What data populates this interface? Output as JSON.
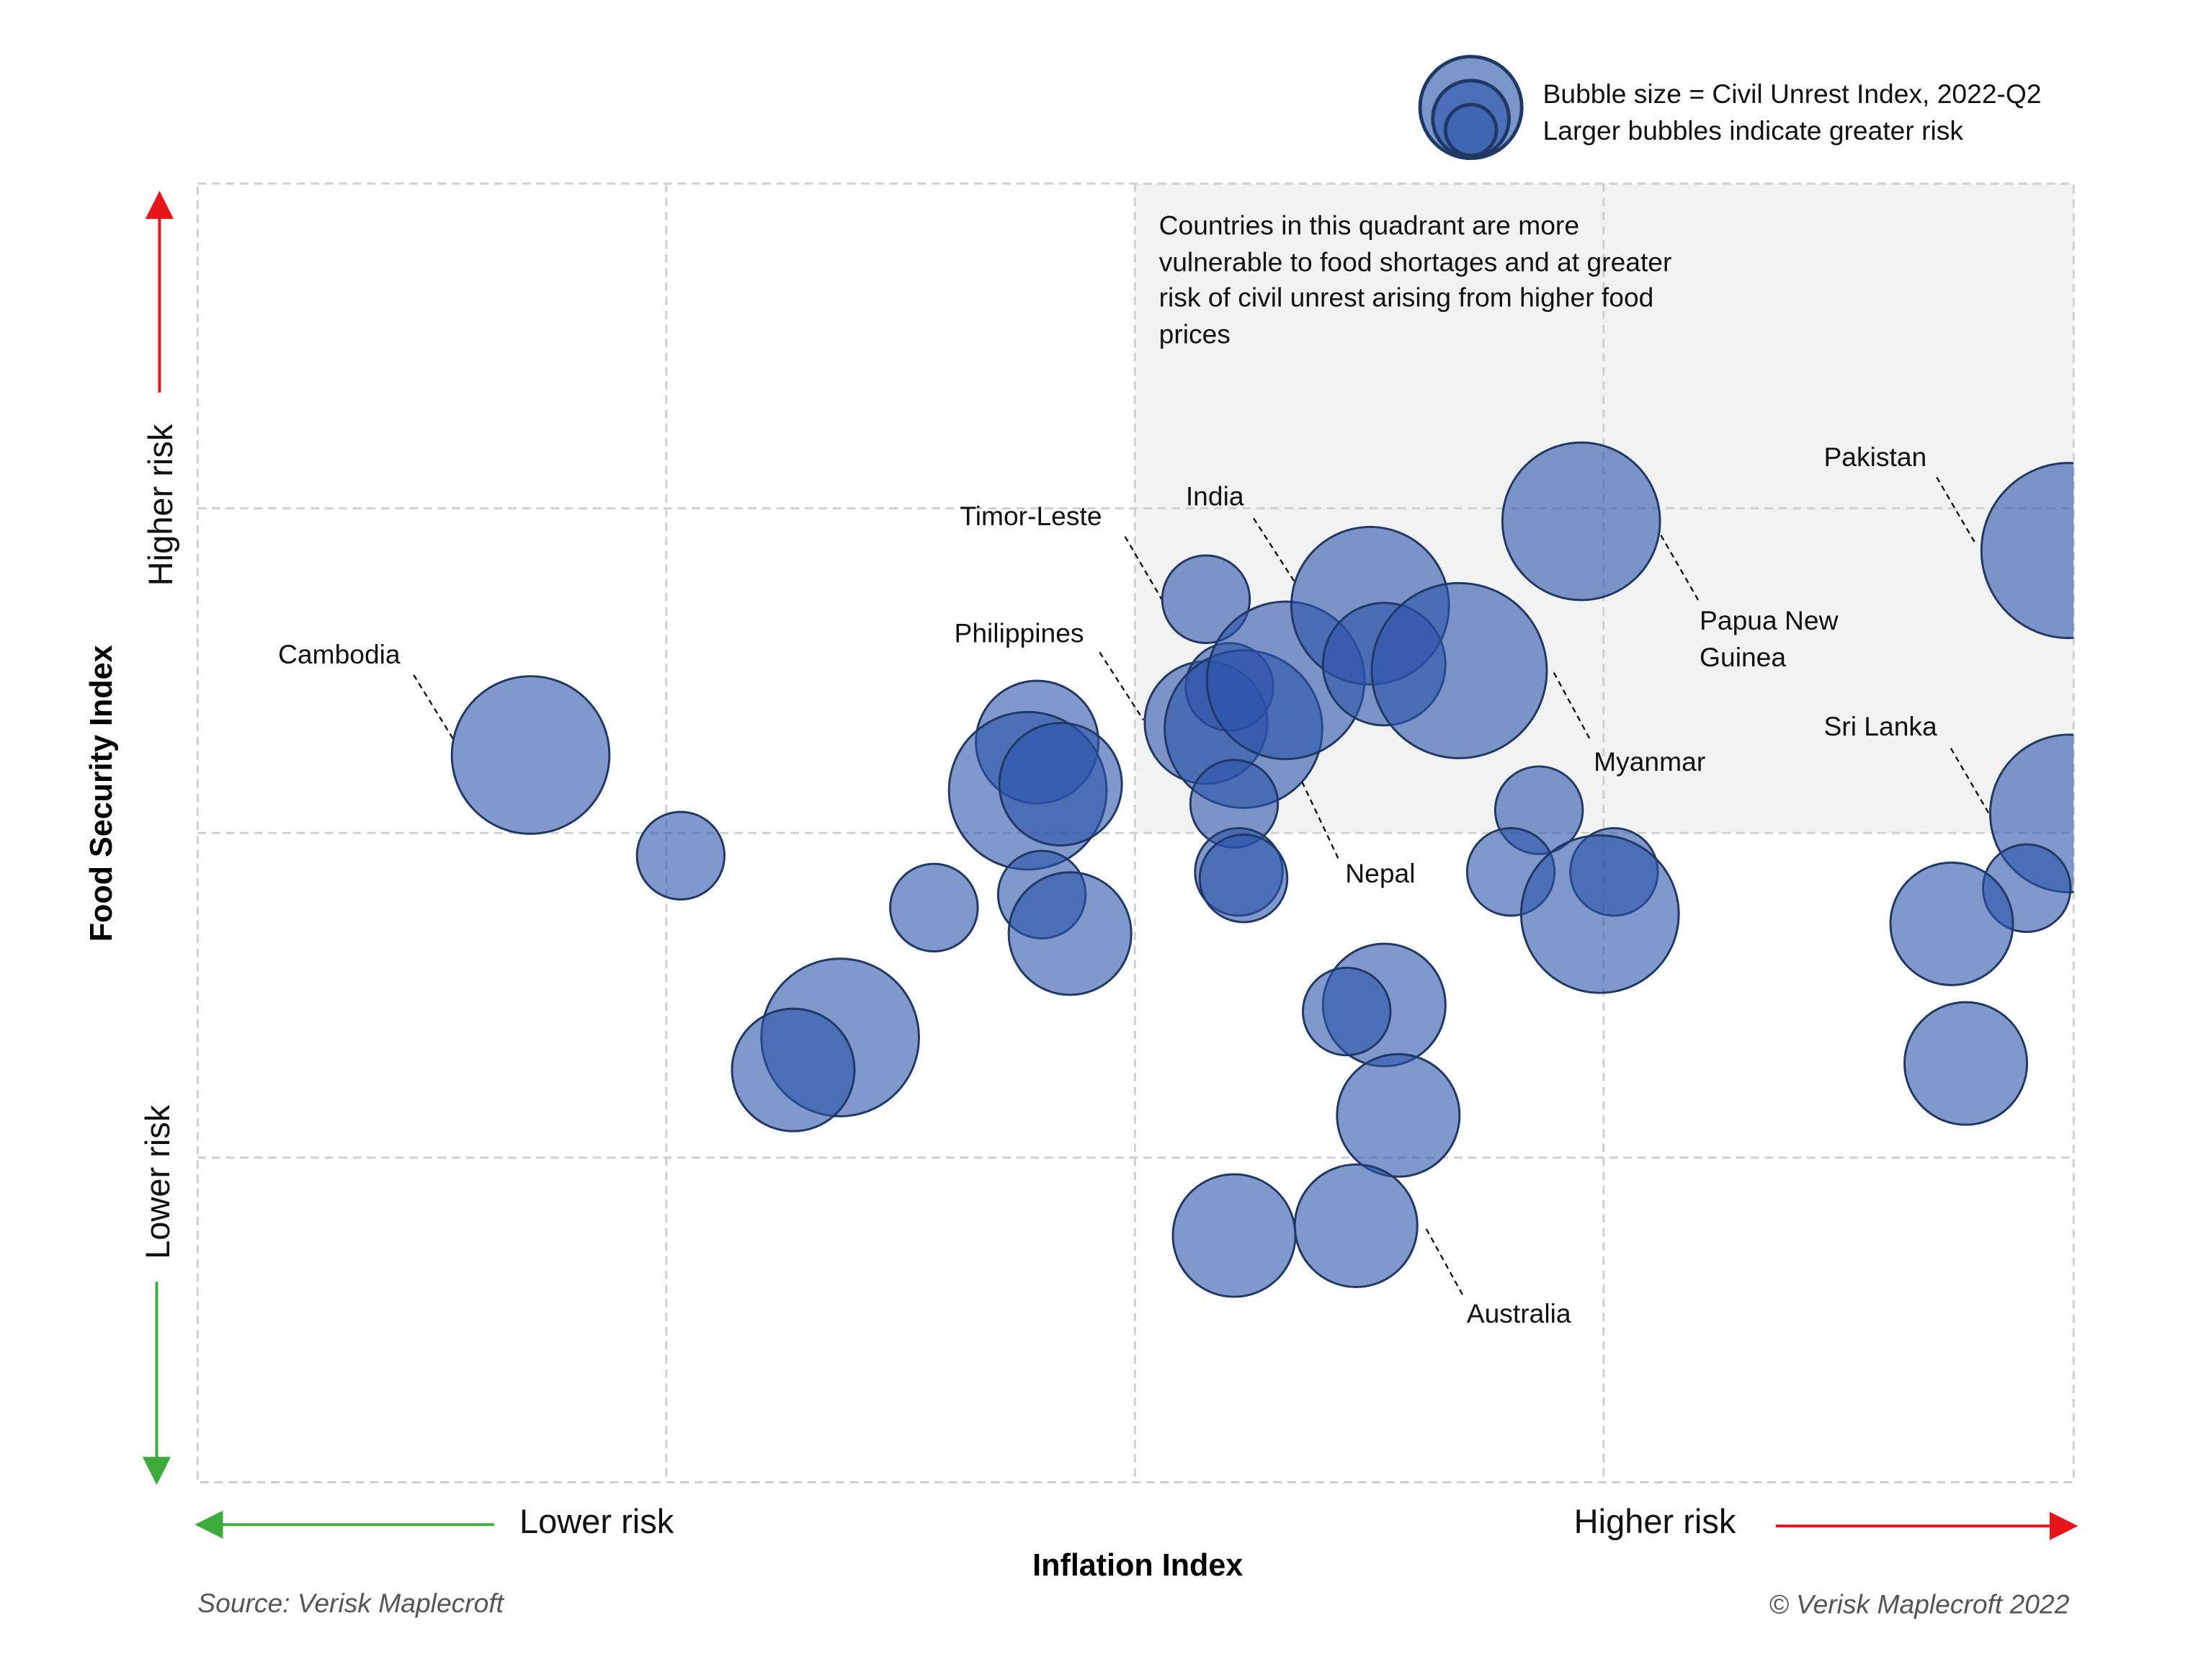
{
  "chart_data": {
    "type": "scatter",
    "subtype": "bubble",
    "xlabel": "Inflation Index",
    "ylabel": "Food Security Index",
    "x_low_label": "Lower risk",
    "x_high_label": "Higher risk",
    "y_low_label": "Lower risk",
    "y_high_label": "Higher risk",
    "xlim": [
      0,
      4
    ],
    "ylim": [
      0,
      4
    ],
    "grid": true,
    "legend": {
      "placement": "top-right",
      "line1": "Bubble size = Civil Unrest Index, 2022-Q2",
      "line2": "Larger bubbles indicate greater risk"
    },
    "quadrant_note": {
      "lines": [
        "Countries in this quadrant are more",
        "vulnerable to food shortages and at greater",
        "risk of civil unrest arising from higher food",
        "prices"
      ],
      "fill": "#f2f2f2"
    },
    "colors": {
      "bubble_fill": "#2c54aa",
      "bubble_stroke": "#1f3864",
      "low_risk_arrow": "#3cab3c",
      "high_risk_arrow": "#e8141c"
    },
    "points": [
      {
        "label": "Cambodia",
        "x": 0.71,
        "y": 2.24,
        "size": 9
      },
      {
        "x": 1.03,
        "y": 1.93,
        "size": 5
      },
      {
        "x": 1.57,
        "y": 1.77,
        "size": 5
      },
      {
        "x": 1.37,
        "y": 1.37,
        "size": 9
      },
      {
        "x": 1.27,
        "y": 1.27,
        "size": 7
      },
      {
        "x": 1.79,
        "y": 2.28,
        "size": 7
      },
      {
        "x": 1.77,
        "y": 2.13,
        "size": 9
      },
      {
        "x": 1.84,
        "y": 2.15,
        "size": 7
      },
      {
        "x": 1.8,
        "y": 1.81,
        "size": 5
      },
      {
        "x": 1.86,
        "y": 1.69,
        "size": 7
      },
      {
        "label": "Timor-Leste",
        "x": 2.15,
        "y": 2.72,
        "size": 5
      },
      {
        "label": "Philippines",
        "x": 2.15,
        "y": 2.34,
        "size": 7
      },
      {
        "x": 2.2,
        "y": 2.45,
        "size": 5
      },
      {
        "label": "Nepal",
        "x": 2.23,
        "y": 2.32,
        "size": 9
      },
      {
        "x": 2.32,
        "y": 2.47,
        "size": 9
      },
      {
        "x": 2.21,
        "y": 2.09,
        "size": 5
      },
      {
        "x": 2.22,
        "y": 1.88,
        "size": 5
      },
      {
        "x": 2.23,
        "y": 1.86,
        "size": 5
      },
      {
        "label": "India",
        "x": 2.5,
        "y": 2.7,
        "size": 9
      },
      {
        "x": 2.53,
        "y": 2.52,
        "size": 7
      },
      {
        "label": "Myanmar",
        "x": 2.69,
        "y": 2.5,
        "size": 10
      },
      {
        "label": "Papua New Guinea",
        "x": 2.95,
        "y": 2.96,
        "size": 9
      },
      {
        "x": 2.86,
        "y": 2.07,
        "size": 5
      },
      {
        "x": 2.8,
        "y": 1.88,
        "size": 5
      },
      {
        "x": 3.02,
        "y": 1.88,
        "size": 5
      },
      {
        "x": 2.99,
        "y": 1.75,
        "size": 9
      },
      {
        "label": "Pakistan",
        "x": 3.99,
        "y": 2.87,
        "size": 10
      },
      {
        "label": "Sri Lanka",
        "x": 3.99,
        "y": 2.06,
        "size": 9
      },
      {
        "x": 3.9,
        "y": 1.83,
        "size": 5
      },
      {
        "x": 3.74,
        "y": 1.72,
        "size": 7
      },
      {
        "x": 3.77,
        "y": 1.29,
        "size": 7
      },
      {
        "x": 2.53,
        "y": 1.47,
        "size": 7
      },
      {
        "x": 2.45,
        "y": 1.45,
        "size": 5
      },
      {
        "x": 2.56,
        "y": 1.13,
        "size": 7
      },
      {
        "x": 2.21,
        "y": 0.76,
        "size": 7
      },
      {
        "label": "Australia",
        "x": 2.47,
        "y": 0.79,
        "size": 7
      }
    ],
    "source": "Source: Verisk Maplecroft",
    "copyright": "© Verisk Maplecroft 2022"
  }
}
